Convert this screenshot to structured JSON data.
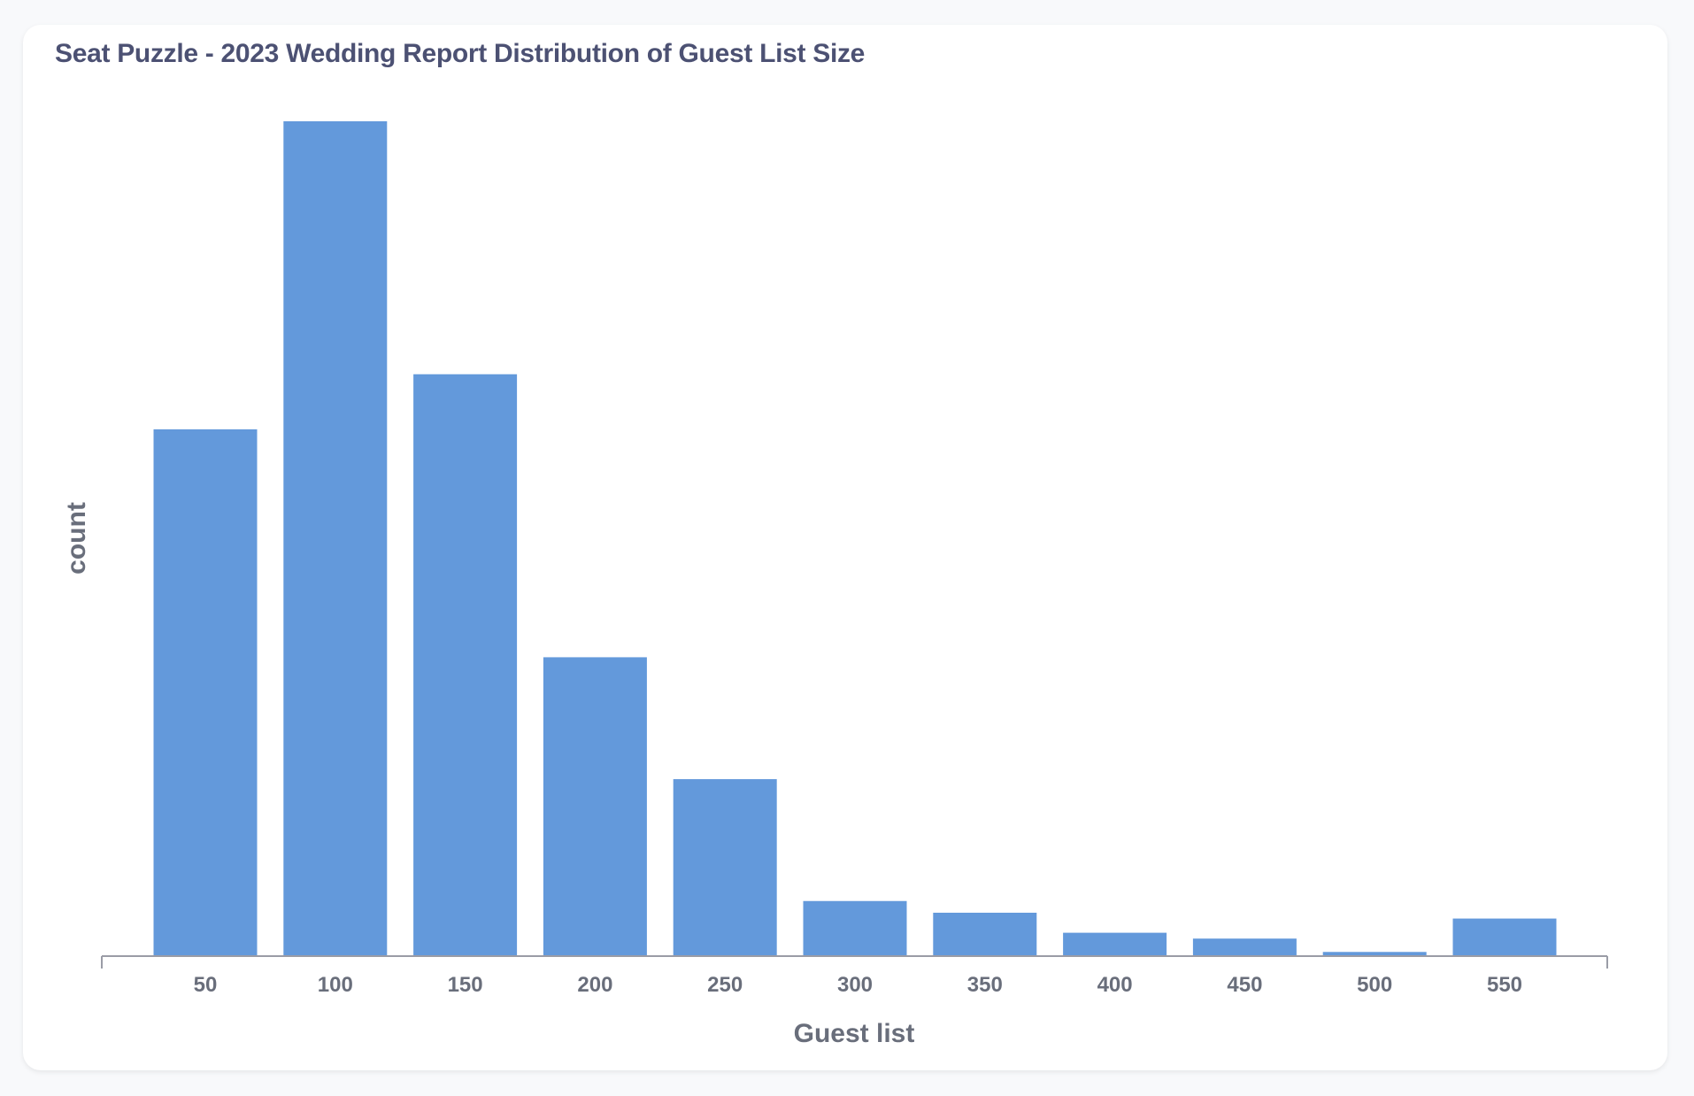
{
  "chart_data": {
    "type": "bar",
    "title": "Seat Puzzle - 2023 Wedding Report Distribution of Guest List Size",
    "xlabel": "Guest list",
    "ylabel": "count",
    "categories": [
      "50",
      "100",
      "150",
      "200",
      "250",
      "300",
      "350",
      "400",
      "450",
      "500",
      "550"
    ],
    "values": [
      63.1,
      100,
      69.7,
      35.8,
      21.2,
      6.6,
      5.2,
      2.8,
      2.1,
      0.5,
      4.5
    ],
    "ylim": [
      0,
      100
    ],
    "grid": false,
    "y_ticks_shown": false,
    "colors": {
      "bar": "#6399db",
      "axis": "#9a9ca6",
      "title": "#4c5173",
      "label": "#696e7b"
    }
  }
}
